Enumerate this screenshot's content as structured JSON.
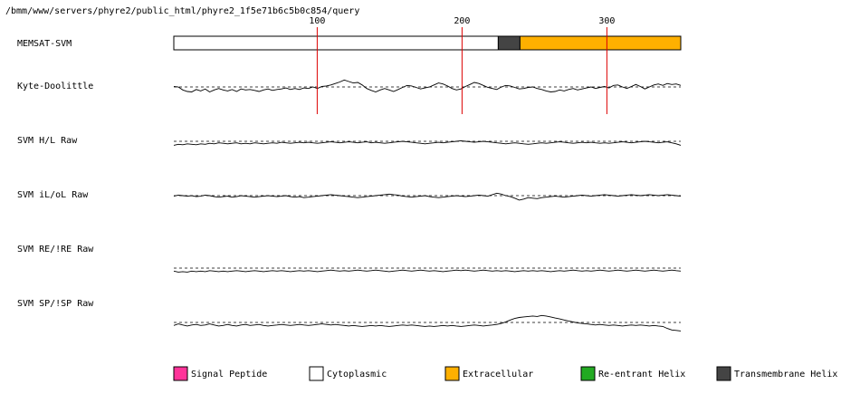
{
  "chart_data": {
    "type": "line",
    "title": "/bmm/www/servers/phyre2/public_html/phyre2_1f5e71b6c5b0c854/query",
    "sequence_length": 351,
    "ticks": [
      100,
      200,
      300
    ],
    "tick_labels": [
      "100",
      "200",
      "300"
    ],
    "memsat": {
      "label": "MEMSAT-SVM",
      "segments": [
        {
          "type": "cytoplasmic",
          "start": 1,
          "end": 225
        },
        {
          "type": "transmembrane",
          "start": 225,
          "end": 240
        },
        {
          "type": "extracellular",
          "start": 240,
          "end": 351
        }
      ]
    },
    "tracks": [
      {
        "name": "Kyte-Doolittle",
        "ylim": [
          -3,
          3
        ],
        "threshold": 0,
        "values": [
          0.1,
          0.0,
          -0.6,
          -0.9,
          -1.0,
          -0.5,
          -0.8,
          -0.4,
          -1.0,
          -0.6,
          -0.3,
          -0.6,
          -0.8,
          -0.5,
          -0.9,
          -0.4,
          -0.6,
          -0.5,
          -0.7,
          -0.9,
          -0.6,
          -0.4,
          -0.7,
          -0.5,
          -0.4,
          -0.2,
          -0.5,
          -0.3,
          -0.5,
          -0.2,
          -0.3,
          0.0,
          -0.3,
          0.1,
          0.2,
          0.4,
          0.7,
          1.0,
          1.4,
          1.1,
          0.8,
          0.9,
          0.4,
          -0.3,
          -0.7,
          -1.0,
          -0.6,
          -0.3,
          -0.6,
          -0.9,
          -0.5,
          -0.1,
          0.3,
          0.2,
          -0.1,
          -0.4,
          -0.2,
          0.0,
          0.4,
          0.8,
          0.6,
          0.2,
          -0.3,
          -0.6,
          -0.4,
          0.1,
          0.5,
          0.9,
          0.7,
          0.3,
          -0.1,
          -0.3,
          -0.5,
          0.0,
          0.3,
          0.2,
          -0.1,
          -0.4,
          -0.3,
          -0.1,
          0.0,
          -0.3,
          -0.5,
          -0.8,
          -1.0,
          -0.9,
          -0.6,
          -0.8,
          -0.5,
          -0.3,
          -0.6,
          -0.4,
          -0.2,
          0.0,
          -0.3,
          -0.1,
          0.1,
          -0.2,
          0.3,
          0.4,
          0.0,
          -0.3,
          0.1,
          0.5,
          0.1,
          -0.4,
          0.0,
          0.4,
          0.6,
          0.3,
          0.7,
          0.5,
          0.6,
          0.3
        ]
      },
      {
        "name": "SVM H/L Raw",
        "ylim": [
          -3,
          3
        ],
        "threshold": 0,
        "values": [
          -0.8,
          -0.6,
          -0.7,
          -0.5,
          -0.6,
          -0.7,
          -0.5,
          -0.6,
          -0.4,
          -0.5,
          -0.3,
          -0.4,
          -0.5,
          -0.4,
          -0.3,
          -0.5,
          -0.4,
          -0.5,
          -0.3,
          -0.4,
          -0.5,
          -0.4,
          -0.3,
          -0.4,
          -0.2,
          -0.3,
          -0.4,
          -0.3,
          -0.2,
          -0.3,
          -0.2,
          -0.3,
          -0.4,
          -0.3,
          -0.2,
          -0.1,
          -0.2,
          -0.3,
          -0.2,
          -0.1,
          -0.2,
          -0.3,
          -0.2,
          -0.1,
          -0.3,
          -0.2,
          -0.3,
          -0.4,
          -0.3,
          -0.2,
          -0.1,
          0.0,
          -0.1,
          -0.2,
          -0.3,
          -0.4,
          -0.5,
          -0.4,
          -0.3,
          -0.2,
          -0.3,
          -0.2,
          -0.1,
          0.0,
          0.1,
          0.0,
          -0.1,
          -0.2,
          -0.1,
          0.0,
          -0.1,
          -0.2,
          -0.3,
          -0.4,
          -0.5,
          -0.4,
          -0.3,
          -0.4,
          -0.5,
          -0.6,
          -0.5,
          -0.4,
          -0.3,
          -0.4,
          -0.3,
          -0.2,
          -0.1,
          -0.2,
          -0.3,
          -0.4,
          -0.3,
          -0.2,
          -0.3,
          -0.2,
          -0.3,
          -0.4,
          -0.3,
          -0.4,
          -0.3,
          -0.2,
          -0.1,
          -0.2,
          -0.3,
          -0.2,
          -0.1,
          0.0,
          -0.1,
          -0.2,
          -0.3,
          -0.2,
          -0.1,
          -0.3,
          -0.5,
          -0.8
        ]
      },
      {
        "name": "SVM iL/oL Raw",
        "ylim": [
          -3,
          3
        ],
        "threshold": 0,
        "values": [
          -0.1,
          0.1,
          0.0,
          -0.1,
          0.0,
          -0.2,
          -0.1,
          0.1,
          0.0,
          -0.2,
          -0.3,
          -0.2,
          -0.1,
          -0.3,
          -0.2,
          0.0,
          -0.1,
          -0.2,
          -0.3,
          -0.2,
          -0.1,
          0.0,
          -0.1,
          -0.2,
          -0.1,
          0.0,
          -0.2,
          -0.3,
          -0.2,
          -0.4,
          -0.3,
          -0.2,
          -0.1,
          0.0,
          0.1,
          0.2,
          0.1,
          0.0,
          -0.1,
          -0.2,
          -0.3,
          -0.4,
          -0.3,
          -0.2,
          -0.1,
          0.0,
          0.1,
          0.2,
          0.3,
          0.2,
          0.1,
          -0.1,
          -0.2,
          -0.3,
          -0.2,
          -0.1,
          0.0,
          -0.2,
          -0.3,
          -0.4,
          -0.3,
          -0.2,
          -0.1,
          0.0,
          -0.1,
          -0.2,
          -0.1,
          0.0,
          0.1,
          0.0,
          -0.1,
          0.2,
          0.5,
          0.3,
          0.0,
          -0.2,
          -0.5,
          -0.9,
          -0.7,
          -0.4,
          -0.5,
          -0.6,
          -0.4,
          -0.3,
          -0.2,
          -0.1,
          -0.2,
          -0.3,
          -0.2,
          -0.1,
          0.0,
          0.1,
          0.0,
          -0.1,
          0.0,
          0.1,
          0.2,
          0.1,
          0.0,
          -0.1,
          0.0,
          0.1,
          0.2,
          0.1,
          0.0,
          0.1,
          0.2,
          0.1,
          0.0,
          0.1,
          0.2,
          0.1,
          0.0,
          -0.1
        ]
      },
      {
        "name": "SVM RE/!RE Raw",
        "ylim": [
          -3,
          3
        ],
        "threshold": 0,
        "values": [
          -0.6,
          -0.8,
          -0.7,
          -0.8,
          -0.6,
          -0.7,
          -0.6,
          -0.7,
          -0.5,
          -0.6,
          -0.7,
          -0.6,
          -0.7,
          -0.6,
          -0.5,
          -0.6,
          -0.7,
          -0.6,
          -0.5,
          -0.6,
          -0.7,
          -0.6,
          -0.5,
          -0.6,
          -0.5,
          -0.6,
          -0.7,
          -0.6,
          -0.5,
          -0.6,
          -0.5,
          -0.6,
          -0.7,
          -0.6,
          -0.5,
          -0.4,
          -0.5,
          -0.6,
          -0.5,
          -0.6,
          -0.5,
          -0.4,
          -0.5,
          -0.6,
          -0.5,
          -0.4,
          -0.5,
          -0.6,
          -0.7,
          -0.6,
          -0.5,
          -0.4,
          -0.5,
          -0.6,
          -0.5,
          -0.4,
          -0.5,
          -0.6,
          -0.5,
          -0.6,
          -0.7,
          -0.6,
          -0.5,
          -0.4,
          -0.5,
          -0.4,
          -0.5,
          -0.6,
          -0.5,
          -0.4,
          -0.5,
          -0.6,
          -0.5,
          -0.6,
          -0.5,
          -0.6,
          -0.7,
          -0.6,
          -0.5,
          -0.6,
          -0.5,
          -0.6,
          -0.5,
          -0.6,
          -0.7,
          -0.6,
          -0.5,
          -0.6,
          -0.5,
          -0.4,
          -0.5,
          -0.6,
          -0.5,
          -0.6,
          -0.5,
          -0.4,
          -0.5,
          -0.6,
          -0.5,
          -0.4,
          -0.5,
          -0.6,
          -0.5,
          -0.4,
          -0.5,
          -0.6,
          -0.5,
          -0.4,
          -0.5,
          -0.6,
          -0.5,
          -0.4,
          -0.5,
          -0.6
        ]
      },
      {
        "name": "SVM SP/!SP Raw",
        "ylim": [
          -3,
          3
        ],
        "threshold": 0,
        "values": [
          -0.6,
          -0.3,
          -0.5,
          -0.7,
          -0.5,
          -0.4,
          -0.6,
          -0.5,
          -0.3,
          -0.5,
          -0.7,
          -0.6,
          -0.4,
          -0.6,
          -0.7,
          -0.5,
          -0.4,
          -0.6,
          -0.5,
          -0.4,
          -0.6,
          -0.7,
          -0.6,
          -0.5,
          -0.4,
          -0.5,
          -0.6,
          -0.5,
          -0.4,
          -0.5,
          -0.6,
          -0.5,
          -0.4,
          -0.3,
          -0.4,
          -0.5,
          -0.4,
          -0.5,
          -0.6,
          -0.7,
          -0.6,
          -0.7,
          -0.8,
          -0.7,
          -0.6,
          -0.7,
          -0.6,
          -0.7,
          -0.8,
          -0.7,
          -0.6,
          -0.5,
          -0.6,
          -0.5,
          -0.6,
          -0.7,
          -0.8,
          -0.7,
          -0.8,
          -0.7,
          -0.6,
          -0.7,
          -0.6,
          -0.7,
          -0.8,
          -0.7,
          -0.6,
          -0.5,
          -0.6,
          -0.7,
          -0.6,
          -0.5,
          -0.4,
          -0.2,
          0.1,
          0.5,
          0.8,
          1.0,
          1.1,
          1.2,
          1.3,
          1.2,
          1.4,
          1.3,
          1.1,
          0.9,
          0.7,
          0.5,
          0.3,
          0.1,
          -0.1,
          -0.2,
          -0.3,
          -0.4,
          -0.5,
          -0.4,
          -0.5,
          -0.6,
          -0.5,
          -0.6,
          -0.7,
          -0.6,
          -0.5,
          -0.6,
          -0.5,
          -0.6,
          -0.7,
          -0.6,
          -0.7,
          -0.8,
          -1.2,
          -1.5,
          -1.6,
          -1.7
        ]
      }
    ]
  },
  "legend": [
    {
      "label": "Signal Peptide",
      "color": "#ff3399"
    },
    {
      "label": "Cytoplasmic",
      "color": "#ffffff"
    },
    {
      "label": "Extracellular",
      "color": "#ffb000"
    },
    {
      "label": "Re-entrant Helix",
      "color": "#22aa22"
    },
    {
      "label": "Transmembrane Helix",
      "color": "#444444"
    }
  ],
  "colors": {
    "cytoplasmic": "#ffffff",
    "transmembrane": "#444444",
    "extracellular": "#ffb000",
    "tick_line": "#dd0000",
    "trace": "#000000"
  }
}
